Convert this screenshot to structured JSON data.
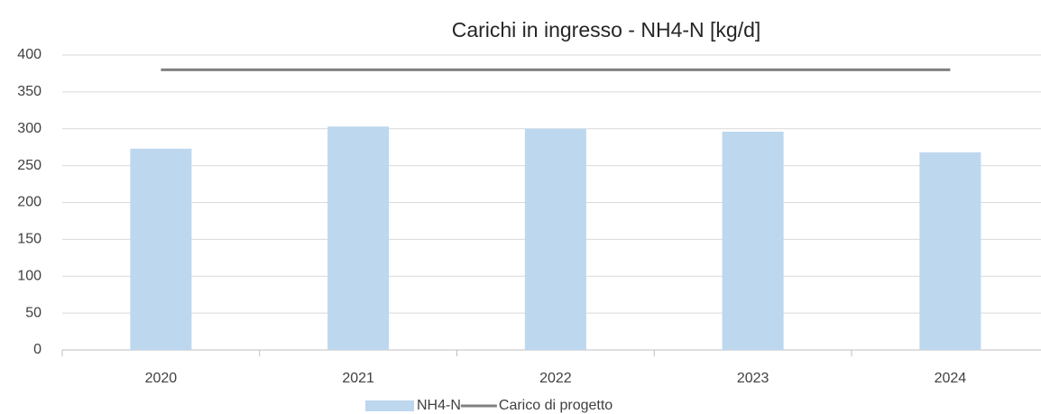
{
  "chart_data": {
    "type": "bar",
    "title": "Carichi in ingresso - NH4-N [kg/d]",
    "categories": [
      "2020",
      "2021",
      "2022",
      "2023",
      "2024"
    ],
    "series": [
      {
        "name": "NH4-N",
        "type": "bar",
        "color": "#bdd7ee",
        "values": [
          273,
          303,
          300,
          296,
          268
        ]
      },
      {
        "name": "Carico di progetto",
        "type": "line",
        "color": "#808080",
        "values": [
          380,
          380,
          380,
          380,
          380
        ]
      }
    ],
    "ylim": [
      0,
      400
    ],
    "yticks": [
      0,
      50,
      100,
      150,
      200,
      250,
      300,
      350,
      400
    ],
    "grid": true,
    "legend": "bottom"
  }
}
